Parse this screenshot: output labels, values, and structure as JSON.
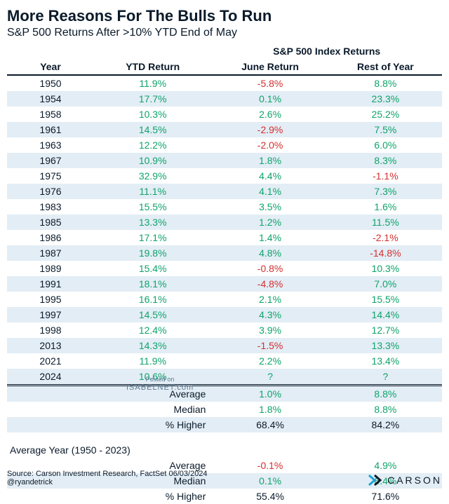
{
  "title": "More Reasons For The Bulls To Run",
  "subtitle": "S&P 500 Returns After >10% YTD End of May",
  "colors": {
    "text": "#0a1a2a",
    "positive": "#0fa36b",
    "negative": "#d42f2f",
    "unknown": "#0fa36b",
    "stripe": "#e3edf5",
    "rule": "#0a1a2a",
    "logo_accent": "#1aa3d9"
  },
  "columns": {
    "group_header": "S&P 500 Index Returns",
    "year": "Year",
    "ytd": "YTD Return",
    "june": "June Return",
    "rest": "Rest of Year"
  },
  "rows": [
    {
      "year": "1950",
      "ytd": "11.9%",
      "jun": "-5.8%",
      "roy": "8.8%",
      "junNeg": true
    },
    {
      "year": "1954",
      "ytd": "17.7%",
      "jun": "0.1%",
      "roy": "23.3%"
    },
    {
      "year": "1958",
      "ytd": "10.3%",
      "jun": "2.6%",
      "roy": "25.2%"
    },
    {
      "year": "1961",
      "ytd": "14.5%",
      "jun": "-2.9%",
      "roy": "7.5%",
      "junNeg": true
    },
    {
      "year": "1963",
      "ytd": "12.2%",
      "jun": "-2.0%",
      "roy": "6.0%",
      "junNeg": true
    },
    {
      "year": "1967",
      "ytd": "10.9%",
      "jun": "1.8%",
      "roy": "8.3%"
    },
    {
      "year": "1975",
      "ytd": "32.9%",
      "jun": "4.4%",
      "roy": "-1.1%",
      "royNeg": true
    },
    {
      "year": "1976",
      "ytd": "11.1%",
      "jun": "4.1%",
      "roy": "7.3%"
    },
    {
      "year": "1983",
      "ytd": "15.5%",
      "jun": "3.5%",
      "roy": "1.6%"
    },
    {
      "year": "1985",
      "ytd": "13.3%",
      "jun": "1.2%",
      "roy": "11.5%"
    },
    {
      "year": "1986",
      "ytd": "17.1%",
      "jun": "1.4%",
      "roy": "-2.1%",
      "royNeg": true
    },
    {
      "year": "1987",
      "ytd": "19.8%",
      "jun": "4.8%",
      "roy": "-14.8%",
      "royNeg": true
    },
    {
      "year": "1989",
      "ytd": "15.4%",
      "jun": "-0.8%",
      "roy": "10.3%",
      "junNeg": true
    },
    {
      "year": "1991",
      "ytd": "18.1%",
      "jun": "-4.8%",
      "roy": "7.0%",
      "junNeg": true
    },
    {
      "year": "1995",
      "ytd": "16.1%",
      "jun": "2.1%",
      "roy": "15.5%"
    },
    {
      "year": "1997",
      "ytd": "14.5%",
      "jun": "4.3%",
      "roy": "14.4%"
    },
    {
      "year": "1998",
      "ytd": "12.4%",
      "jun": "3.9%",
      "roy": "12.7%"
    },
    {
      "year": "2013",
      "ytd": "14.3%",
      "jun": "-1.5%",
      "roy": "13.3%",
      "junNeg": true
    },
    {
      "year": "2021",
      "ytd": "11.9%",
      "jun": "2.2%",
      "roy": "13.4%"
    },
    {
      "year": "2024",
      "ytd": "10.6%",
      "jun": "?",
      "roy": "?",
      "junUnknown": true,
      "royUnknown": true
    }
  ],
  "summary": [
    {
      "label": "Average",
      "jun": "1.0%",
      "roy": "8.8%"
    },
    {
      "label": "Median",
      "jun": "1.8%",
      "roy": "8.8%"
    },
    {
      "label": "% Higher",
      "jun": "68.4%",
      "roy": "84.2%",
      "plain": true
    }
  ],
  "avg_section_label": "Average Year (1950 - 2023)",
  "avg_summary": [
    {
      "label": "Average",
      "jun": "-0.1%",
      "roy": "4.9%",
      "junNeg": true
    },
    {
      "label": "Median",
      "jun": "0.1%",
      "roy": "6.4%"
    },
    {
      "label": "% Higher",
      "jun": "55.4%",
      "roy": "71.6%",
      "plain": true
    }
  ],
  "footer": {
    "source": "Source: Carson Investment Research, FactSet 06/03/2024",
    "handle": "@ryandetrick",
    "logo_text": "CARSON"
  },
  "watermark": {
    "top": "Posted on",
    "domain": "ISABELNET.com"
  }
}
